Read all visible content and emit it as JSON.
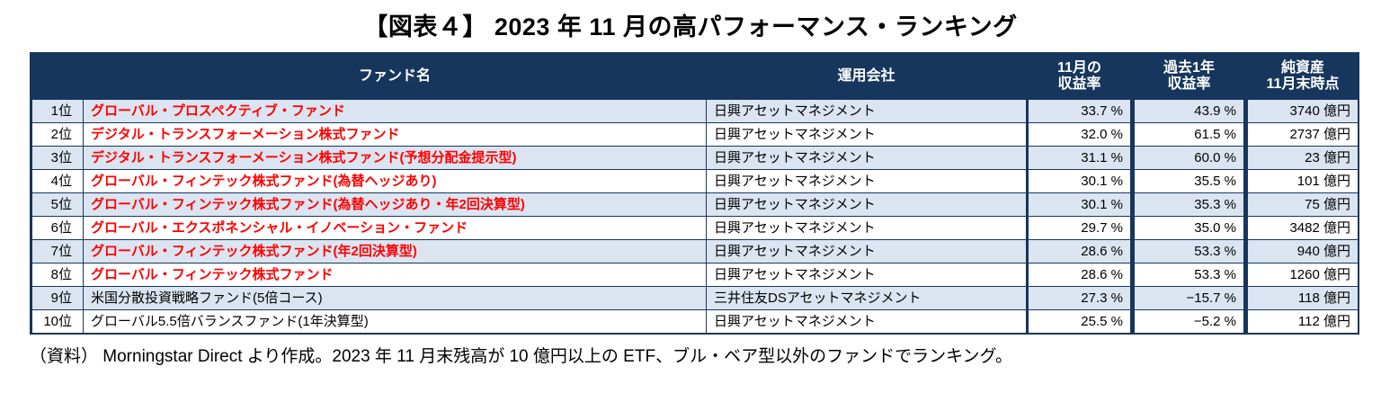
{
  "title": "【図表４】 2023 年 11 月の高パフォーマンス・ランキング",
  "footnote": "（資料） Morningstar Direct より作成。2023 年 11 月末残高が 10 億円以上の ETF、ブル・ベア型以外のファンドでランキング。",
  "colors": {
    "header_bg": "#17365d",
    "border": "#17365d",
    "row_alt_bg": "#dbe5f1",
    "highlight_text": "#ff0000"
  },
  "table": {
    "header": {
      "rank": "",
      "fund": "ファンド名",
      "company": "運用会社",
      "nov_return_line1": "11月の",
      "nov_return_line2": "収益率",
      "year_return_line1": "過去1年",
      "year_return_line2": "収益率",
      "assets_line1": "純資産",
      "assets_line2": "11月末時点"
    },
    "rows": [
      {
        "rank": "1位",
        "fund": "グローバル・プロスペクティブ・ファンド",
        "company": "日興アセットマネジメント",
        "nov_return": "33.7 %",
        "year_return": "43.9 %",
        "assets": "3740 億円",
        "highlight": true
      },
      {
        "rank": "2位",
        "fund": "デジタル・トランスフォーメーション株式ファンド",
        "company": "日興アセットマネジメント",
        "nov_return": "32.0 %",
        "year_return": "61.5 %",
        "assets": "2737 億円",
        "highlight": true
      },
      {
        "rank": "3位",
        "fund": "デジタル・トランスフォーメーション株式ファンド(予想分配金提示型)",
        "company": "日興アセットマネジメント",
        "nov_return": "31.1 %",
        "year_return": "60.0 %",
        "assets": "23 億円",
        "highlight": true
      },
      {
        "rank": "4位",
        "fund": "グローバル・フィンテック株式ファンド(為替ヘッジあり)",
        "company": "日興アセットマネジメント",
        "nov_return": "30.1 %",
        "year_return": "35.5 %",
        "assets": "101 億円",
        "highlight": true
      },
      {
        "rank": "5位",
        "fund": "グローバル・フィンテック株式ファンド(為替ヘッジあり・年2回決算型)",
        "company": "日興アセットマネジメント",
        "nov_return": "30.1 %",
        "year_return": "35.3 %",
        "assets": "75 億円",
        "highlight": true
      },
      {
        "rank": "6位",
        "fund": "グローバル・エクスポネンシャル・イノベーション・ファンド",
        "company": "日興アセットマネジメント",
        "nov_return": "29.7 %",
        "year_return": "35.0 %",
        "assets": "3482 億円",
        "highlight": true
      },
      {
        "rank": "7位",
        "fund": "グローバル・フィンテック株式ファンド(年2回決算型)",
        "company": "日興アセットマネジメント",
        "nov_return": "28.6 %",
        "year_return": "53.3 %",
        "assets": "940 億円",
        "highlight": true
      },
      {
        "rank": "8位",
        "fund": "グローバル・フィンテック株式ファンド",
        "company": "日興アセットマネジメント",
        "nov_return": "28.6 %",
        "year_return": "53.3 %",
        "assets": "1260 億円",
        "highlight": true
      },
      {
        "rank": "9位",
        "fund": "米国分散投資戦略ファンド(5倍コース)",
        "company": "三井住友DSアセットマネジメント",
        "nov_return": "27.3 %",
        "year_return": "−15.7 %",
        "assets": "118 億円",
        "highlight": false
      },
      {
        "rank": "10位",
        "fund": "グローバル5.5倍バランスファンド(1年決算型)",
        "company": "日興アセットマネジメント",
        "nov_return": "25.5 %",
        "year_return": "−5.2 %",
        "assets": "112 億円",
        "highlight": false
      }
    ]
  }
}
